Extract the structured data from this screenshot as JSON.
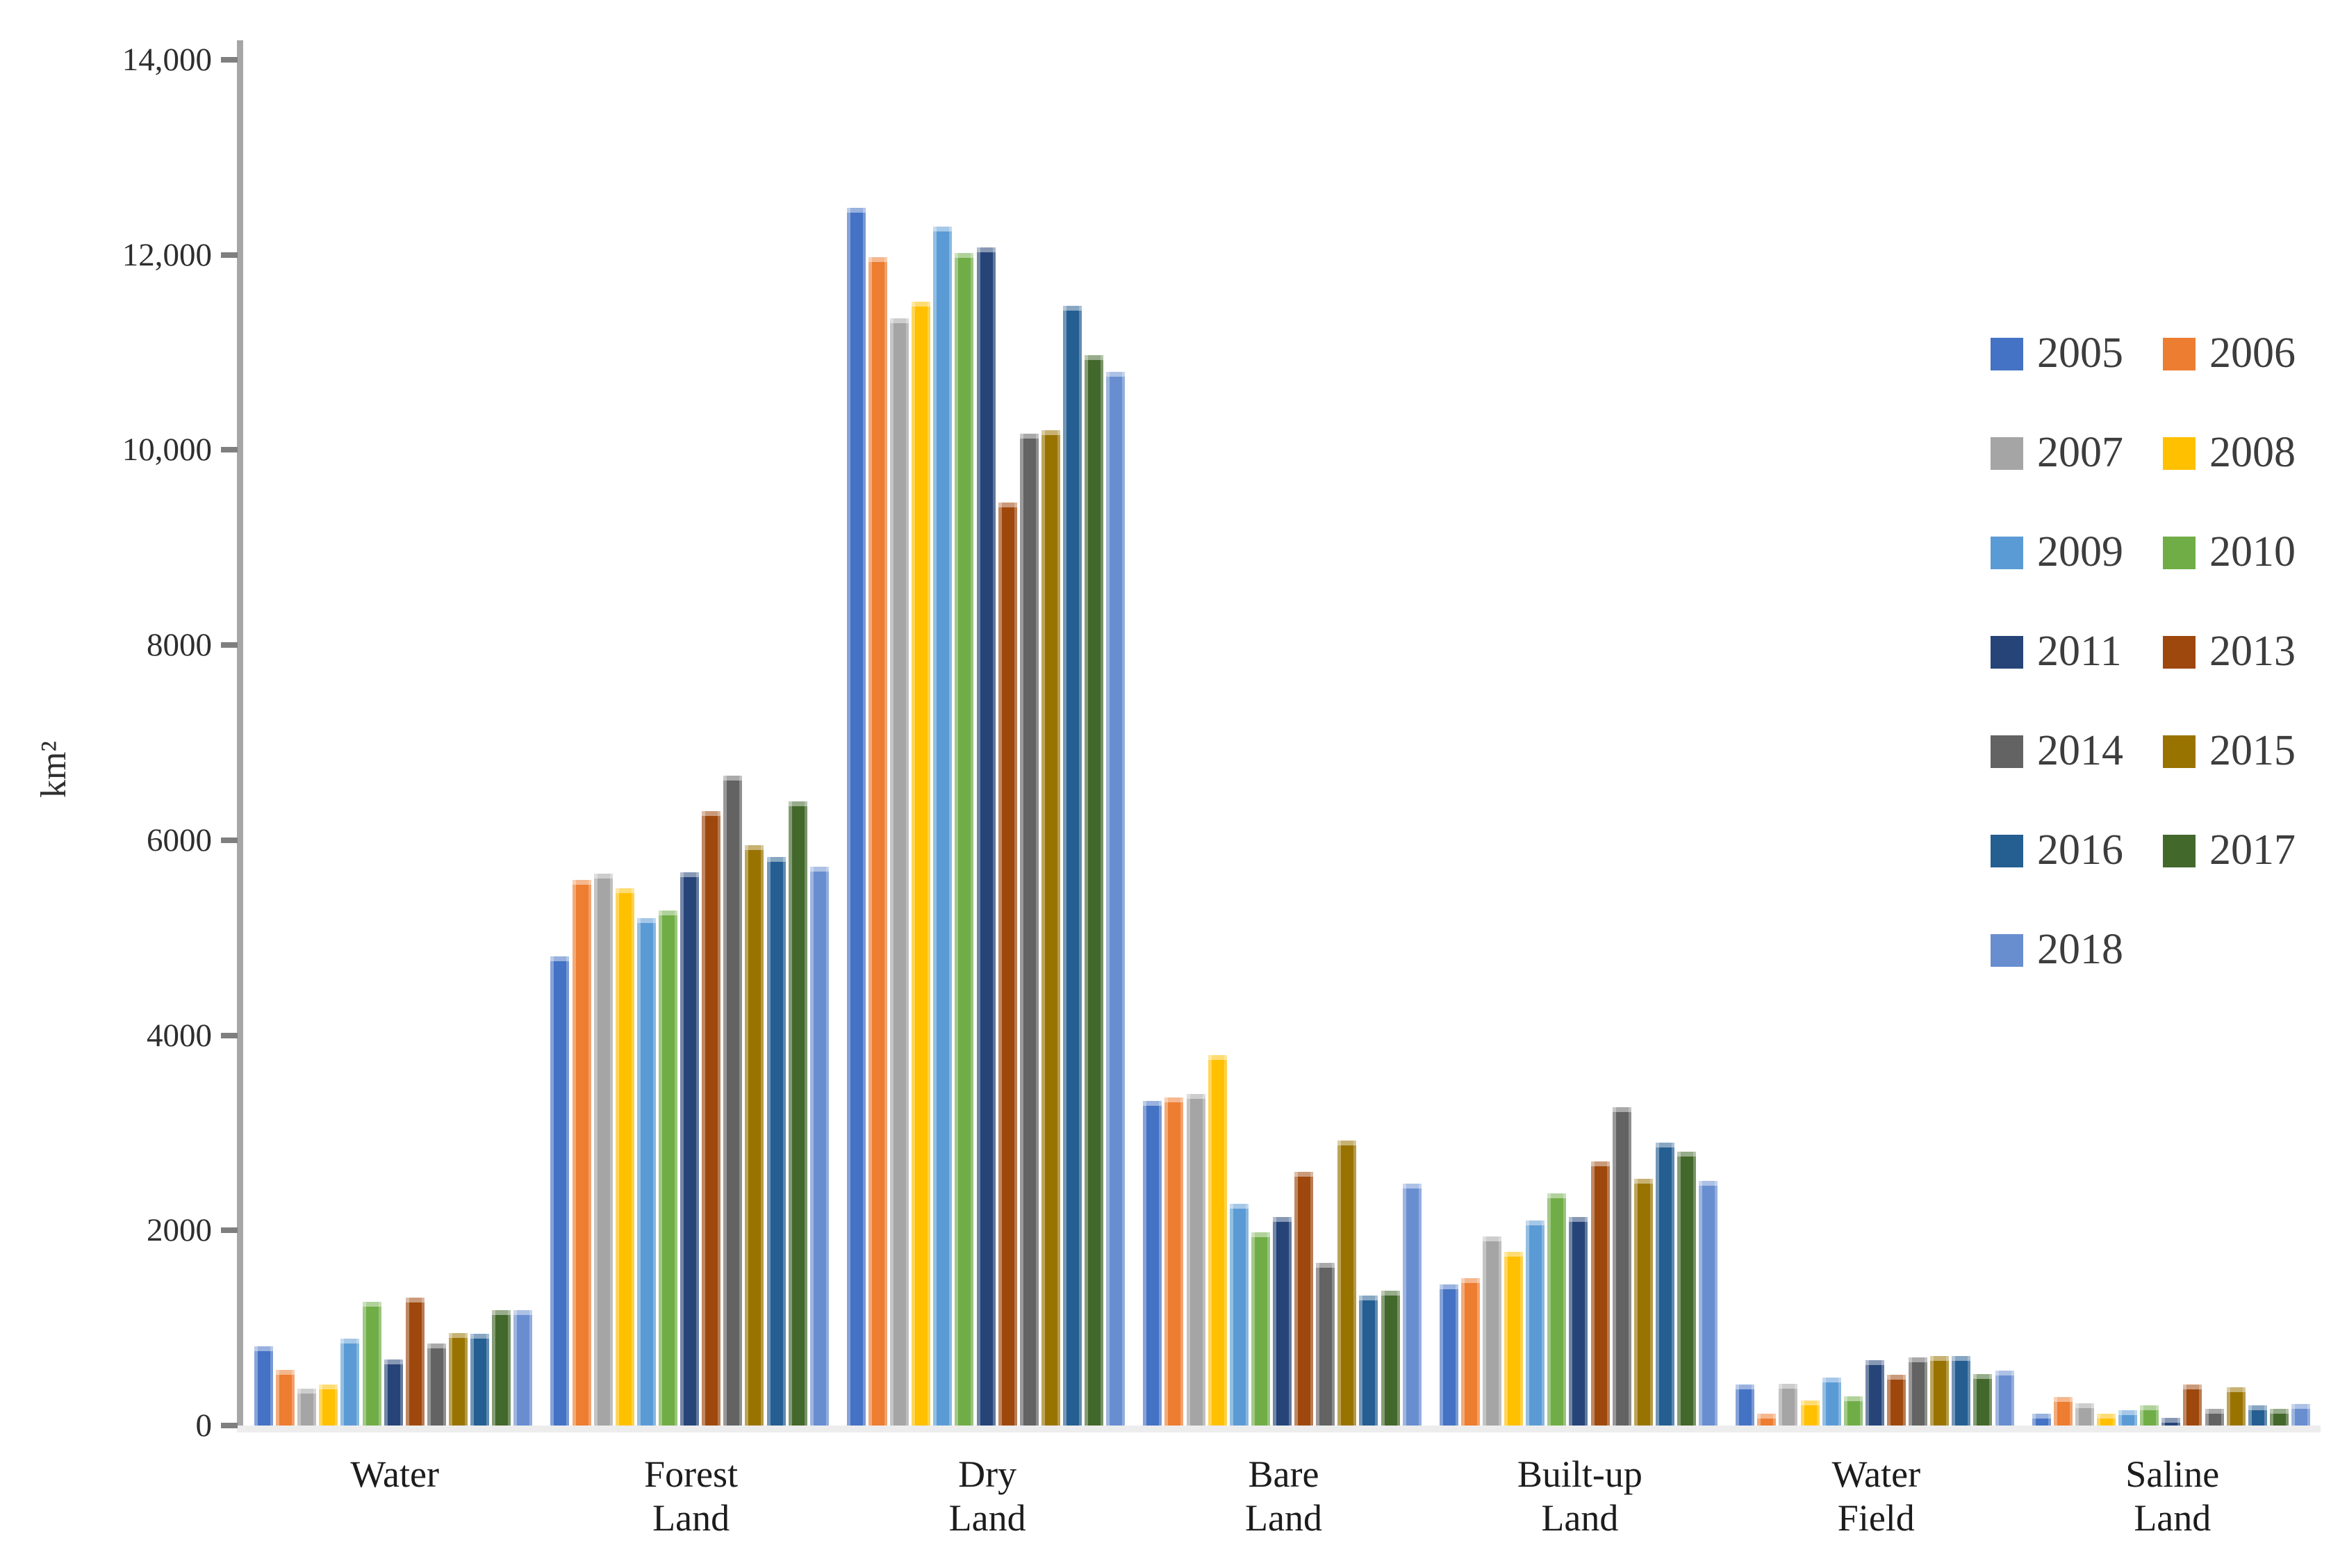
{
  "chart_data": {
    "type": "bar",
    "title": "",
    "xlabel": "",
    "ylabel": "km²",
    "ylim": [
      0,
      14000
    ],
    "ytick_interval": 2000,
    "ytick_labels": [
      "0",
      "2000",
      "4000",
      "6000",
      "8000",
      "10,000",
      "12,000",
      "14,000"
    ],
    "grid": false,
    "background": "#ffffff",
    "axis_color": "#a6a6a6",
    "tick_color": "#7f7f7f",
    "legend_position": "right",
    "categories": [
      "Water",
      "Forest Land",
      "Dry Land",
      "Bare Land",
      "Built-up Land",
      "Water Field",
      "Saline Land"
    ],
    "category_label_lines": [
      [
        "Water"
      ],
      [
        "Forest",
        "Land"
      ],
      [
        "Dry",
        "Land"
      ],
      [
        "Bare",
        "Land"
      ],
      [
        "Built-up",
        "Land"
      ],
      [
        "Water",
        "Field"
      ],
      [
        "Saline",
        "Land"
      ]
    ],
    "series": [
      {
        "name": "2005",
        "color": "#4472C4",
        "values": [
          810,
          4810,
          12480,
          3330,
          1450,
          420,
          120
        ]
      },
      {
        "name": "2006",
        "color": "#ED7D31",
        "values": [
          570,
          5590,
          11980,
          3360,
          1510,
          120,
          290
        ]
      },
      {
        "name": "2007",
        "color": "#A5A5A5",
        "values": [
          380,
          5660,
          11350,
          3400,
          1940,
          430,
          230
        ]
      },
      {
        "name": "2008",
        "color": "#FFC000",
        "values": [
          420,
          5510,
          11520,
          3800,
          1780,
          260,
          120
        ]
      },
      {
        "name": "2009",
        "color": "#5B9BD5",
        "values": [
          890,
          5200,
          12290,
          2270,
          2100,
          490,
          160
        ]
      },
      {
        "name": "2010",
        "color": "#70AD47",
        "values": [
          1270,
          5280,
          12020,
          1980,
          2380,
          300,
          210
        ]
      },
      {
        "name": "2011",
        "color": "#264478",
        "values": [
          680,
          5670,
          12080,
          2140,
          2140,
          670,
          80
        ]
      },
      {
        "name": "2013",
        "color": "#9E480E",
        "values": [
          1310,
          6300,
          9460,
          2600,
          2710,
          520,
          420
        ]
      },
      {
        "name": "2014",
        "color": "#636363",
        "values": [
          840,
          6660,
          10170,
          1670,
          3260,
          700,
          170
        ]
      },
      {
        "name": "2015",
        "color": "#997300",
        "values": [
          950,
          5950,
          10200,
          2920,
          2530,
          710,
          390
        ]
      },
      {
        "name": "2016",
        "color": "#255E91",
        "values": [
          940,
          5830,
          11480,
          1330,
          2900,
          710,
          210
        ]
      },
      {
        "name": "2017",
        "color": "#43682B",
        "values": [
          1180,
          6400,
          10970,
          1380,
          2810,
          530,
          170
        ]
      },
      {
        "name": "2018",
        "color": "#698ED0",
        "values": [
          1180,
          5730,
          10800,
          2480,
          2510,
          560,
          220
        ]
      }
    ]
  }
}
